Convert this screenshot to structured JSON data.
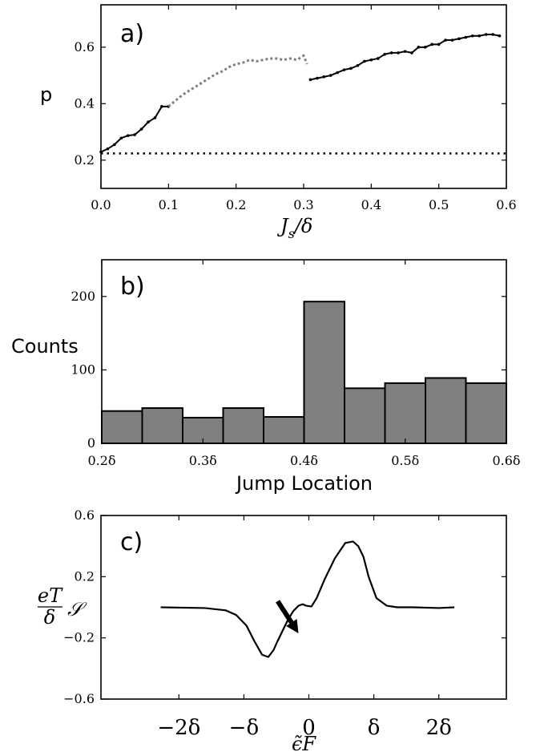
{
  "chart_data": [
    {
      "type": "line",
      "panel_label": "a)",
      "ylabel": "p",
      "xlabel_parts": {
        "main": "J",
        "sub": "s",
        "tail": "/δ"
      },
      "xlim": [
        0.0,
        0.6
      ],
      "ylim": [
        0.1,
        0.75
      ],
      "xticks": [
        "0.0",
        "0.1",
        "0.2",
        "0.3",
        "0.4",
        "0.5",
        "0.6"
      ],
      "xtick_values": [
        0.0,
        0.1,
        0.2,
        0.3,
        0.4,
        0.5,
        0.6
      ],
      "yticks": [
        "0.2",
        "0.4",
        "0.6"
      ],
      "ytick_values": [
        0.2,
        0.4,
        0.6
      ],
      "grid": false,
      "colors": {
        "solid": "#000000",
        "dotted_gray": "#808080",
        "baseline": "#000000"
      },
      "series": [
        {
          "style": "solid-black",
          "x": [
            0.0,
            0.01,
            0.02,
            0.03,
            0.04,
            0.05,
            0.06,
            0.07,
            0.08,
            0.09,
            0.1
          ],
          "y": [
            0.229,
            0.24,
            0.255,
            0.278,
            0.287,
            0.29,
            0.31,
            0.335,
            0.35,
            0.39,
            0.39
          ]
        },
        {
          "style": "dotted-gray",
          "x": [
            0.1,
            0.11,
            0.12,
            0.13,
            0.14,
            0.15,
            0.16,
            0.17,
            0.18,
            0.19,
            0.2,
            0.21,
            0.22,
            0.23,
            0.24,
            0.25,
            0.26,
            0.27,
            0.28,
            0.29,
            0.3,
            0.305
          ],
          "y": [
            0.39,
            0.41,
            0.43,
            0.445,
            0.46,
            0.475,
            0.49,
            0.505,
            0.515,
            0.53,
            0.54,
            0.545,
            0.555,
            0.55,
            0.555,
            0.56,
            0.56,
            0.555,
            0.56,
            0.555,
            0.57,
            0.54
          ]
        },
        {
          "style": "solid-black-markers",
          "x": [
            0.31,
            0.32,
            0.33,
            0.34,
            0.35,
            0.36,
            0.37,
            0.38,
            0.39,
            0.4,
            0.41,
            0.42,
            0.43,
            0.44,
            0.45,
            0.46,
            0.47,
            0.48,
            0.49,
            0.5,
            0.51,
            0.52,
            0.53,
            0.54,
            0.55,
            0.56,
            0.57,
            0.58,
            0.59
          ],
          "y": [
            0.485,
            0.49,
            0.495,
            0.5,
            0.51,
            0.52,
            0.525,
            0.535,
            0.55,
            0.555,
            0.56,
            0.575,
            0.58,
            0.58,
            0.585,
            0.58,
            0.6,
            0.6,
            0.61,
            0.61,
            0.625,
            0.625,
            0.63,
            0.635,
            0.64,
            0.64,
            0.645,
            0.645,
            0.64
          ]
        },
        {
          "style": "dotted-black-baseline",
          "x": [
            0.0,
            0.6
          ],
          "y": [
            0.224,
            0.224
          ]
        }
      ]
    },
    {
      "type": "bar",
      "panel_label": "b)",
      "ylabel": "Counts",
      "xlabel": "Jump Location",
      "xlim": [
        0.2,
        0.6
      ],
      "ylim": [
        0,
        250
      ],
      "xticks": [
        "0.2δ",
        "0.3δ",
        "0.4δ",
        "0.5δ",
        "0.6δ"
      ],
      "xtick_values": [
        0.2,
        0.3,
        0.4,
        0.5,
        0.6
      ],
      "yticks": [
        "0",
        "100",
        "200"
      ],
      "ytick_values": [
        0,
        100,
        200
      ],
      "grid": false,
      "colors": {
        "bar_fill": "#808080",
        "bar_edge": "#000000"
      },
      "bin_edges": [
        0.2,
        0.24,
        0.28,
        0.32,
        0.36,
        0.4,
        0.44,
        0.48,
        0.52,
        0.56,
        0.6
      ],
      "values": [
        44,
        48,
        35,
        48,
        36,
        193,
        75,
        82,
        89,
        82
      ]
    },
    {
      "type": "line",
      "panel_label": "c)",
      "ylabel_parts": {
        "numerator": "eT",
        "denominator": "δ",
        "symbol": "𝒮"
      },
      "xlabel": "ϵ̃F",
      "xlim": [
        -4.0,
        3.8
      ],
      "ylim": [
        -0.6,
        0.6
      ],
      "xticks": [
        "−2δ",
        "−δ",
        "0",
        "δ",
        "2δ"
      ],
      "xtick_values": [
        -2.5,
        -1.25,
        0.0,
        1.25,
        2.5
      ],
      "yticks": [
        "0.6",
        "0.2",
        "−0.2",
        "−0.6"
      ],
      "ytick_values": [
        0.6,
        0.2,
        -0.2,
        -0.6
      ],
      "grid": false,
      "arrow_annotation": {
        "from": [
          -0.6,
          0.04
        ],
        "to": [
          -0.2,
          -0.17
        ]
      },
      "colors": {
        "line": "#000000"
      },
      "series": [
        {
          "x": [
            -2.85,
            -2.0,
            -1.6,
            -1.4,
            -1.2,
            -1.05,
            -0.9,
            -0.78,
            -0.68,
            -0.6,
            -0.5,
            -0.4,
            -0.3,
            -0.2,
            -0.12,
            -0.05,
            0.05,
            0.15,
            0.3,
            0.5,
            0.7,
            0.85,
            0.95,
            1.05,
            1.15,
            1.3,
            1.5,
            1.7,
            2.0,
            2.5,
            2.8
          ],
          "y": [
            0.0,
            -0.005,
            -0.02,
            -0.05,
            -0.12,
            -0.22,
            -0.31,
            -0.325,
            -0.28,
            -0.22,
            -0.15,
            -0.08,
            -0.025,
            0.01,
            0.02,
            0.01,
            0.005,
            0.06,
            0.18,
            0.32,
            0.42,
            0.43,
            0.4,
            0.33,
            0.2,
            0.06,
            0.01,
            0.0,
            0.0,
            -0.005,
            0.0
          ]
        }
      ]
    }
  ]
}
